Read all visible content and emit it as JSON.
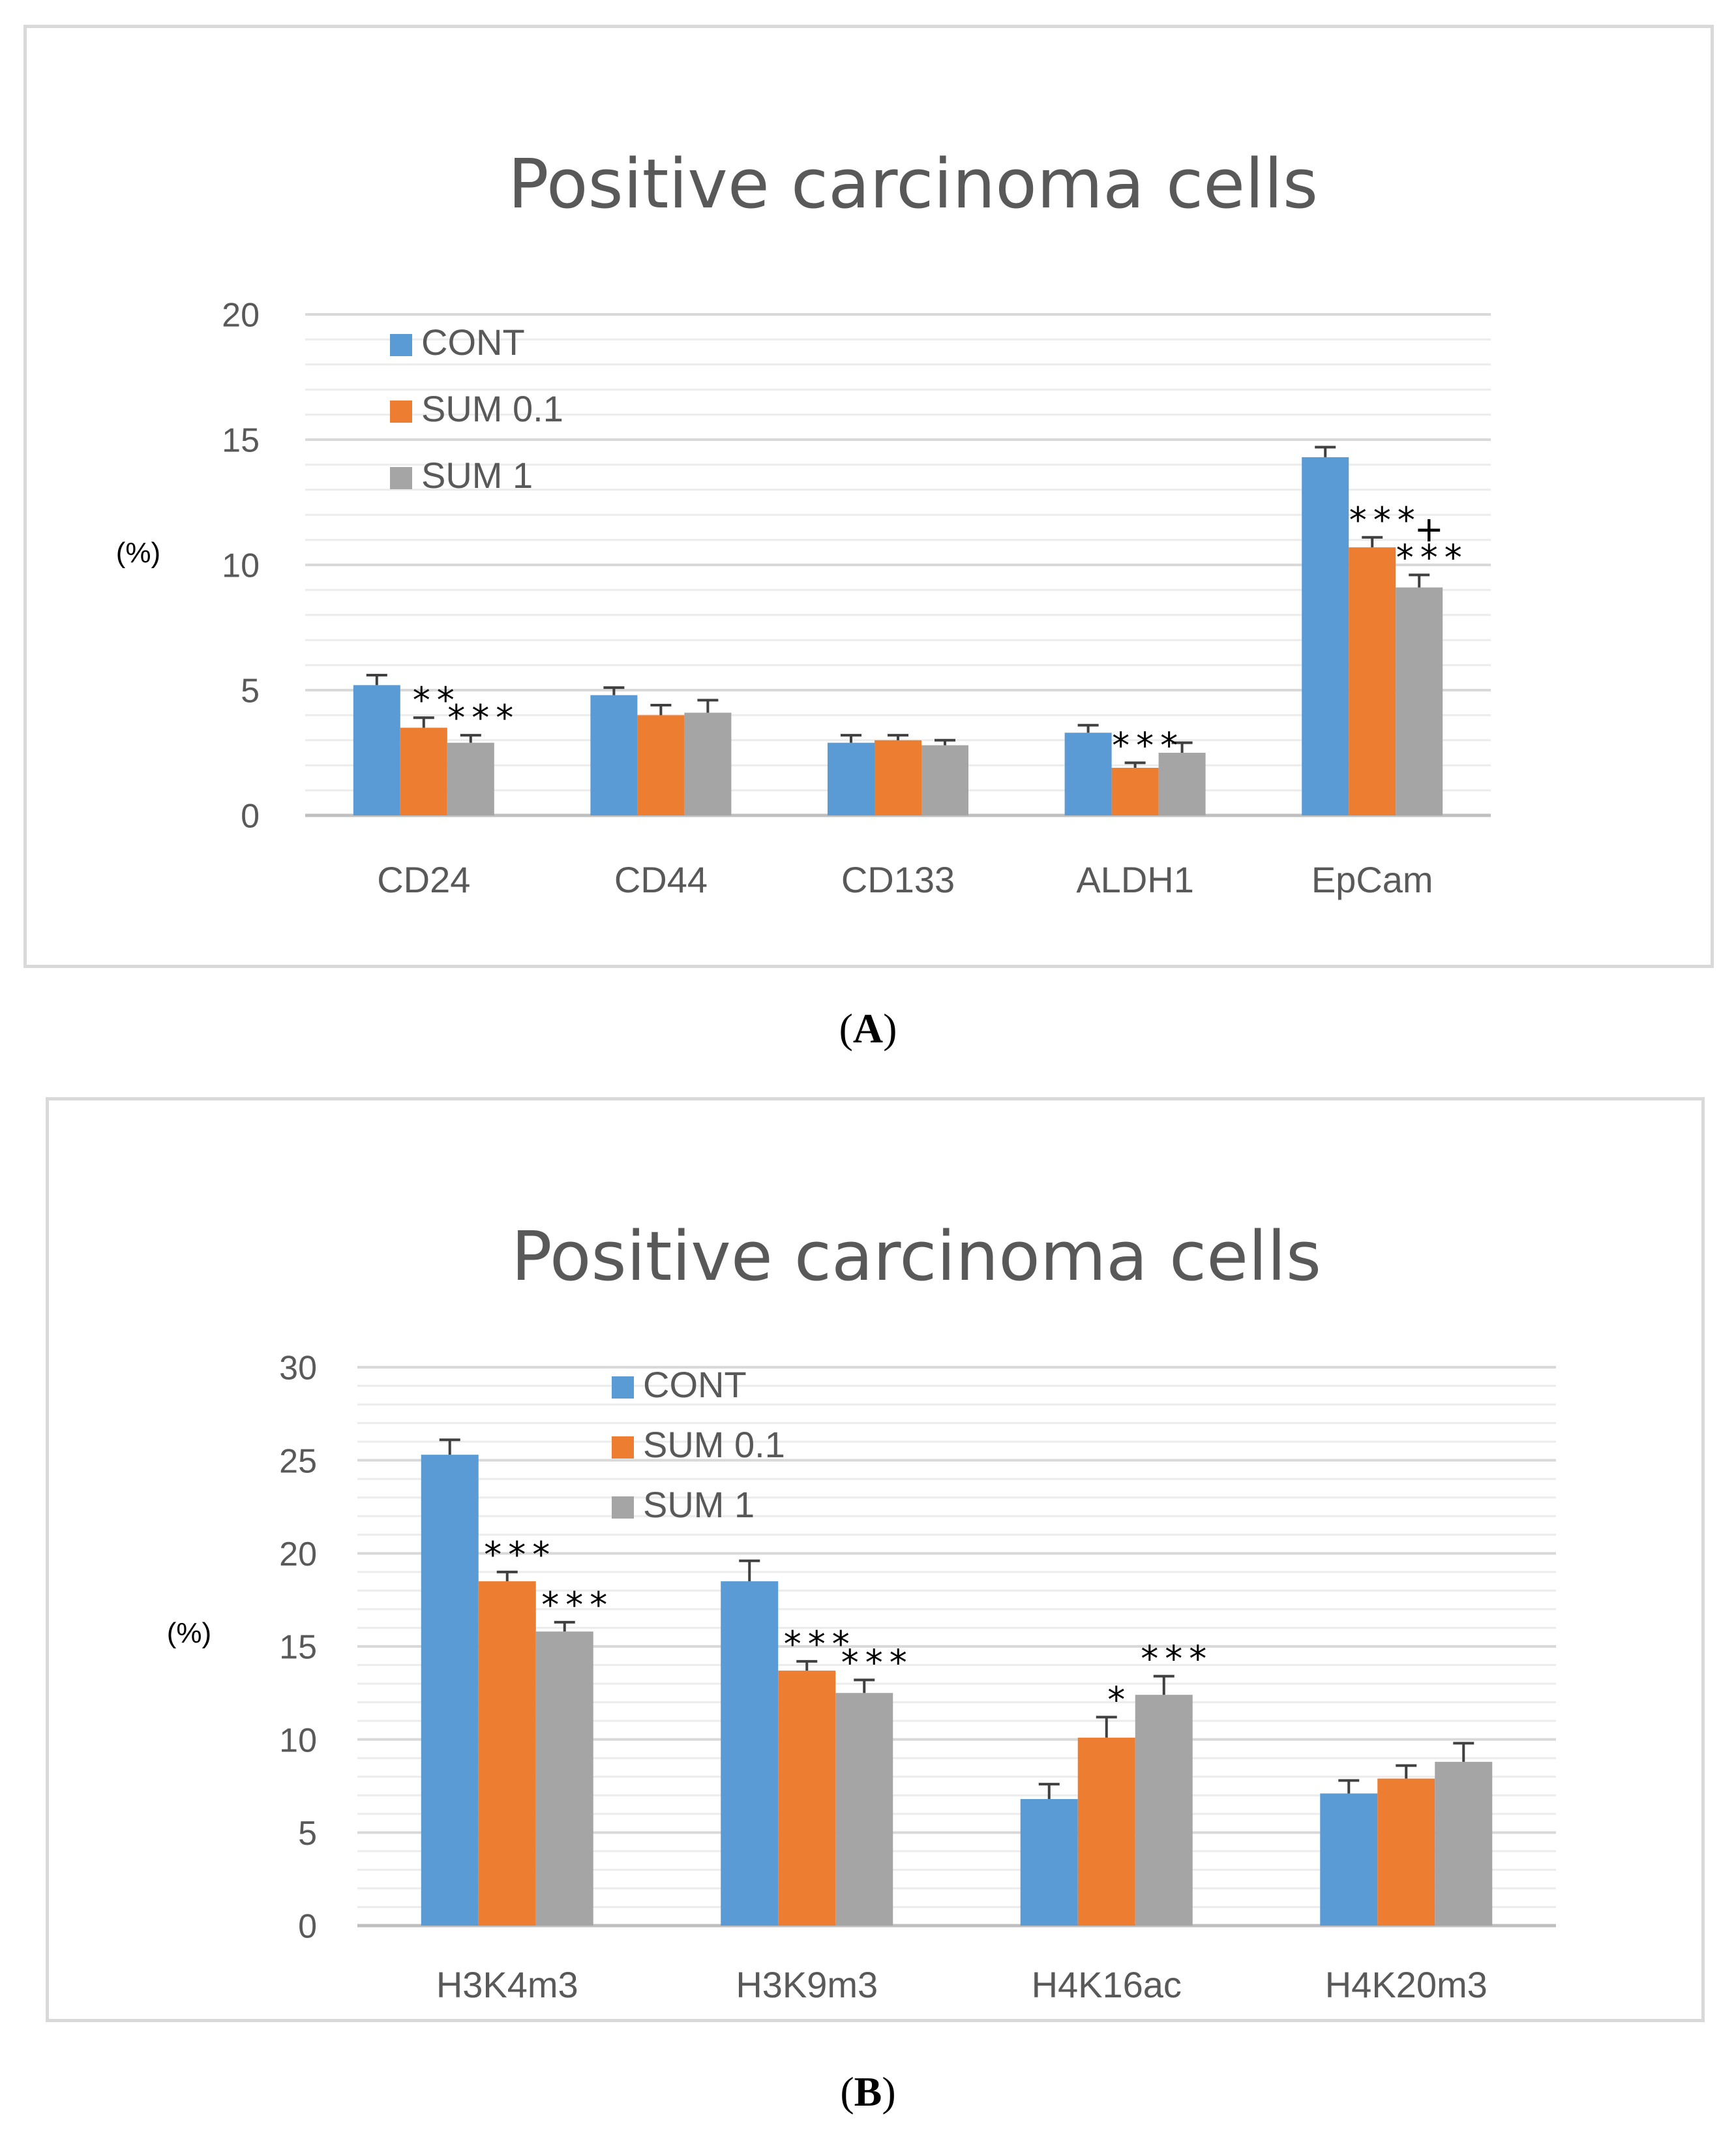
{
  "panel_labels": {
    "a": {
      "open": "(",
      "letter": "A",
      "close": ")"
    },
    "b": {
      "open": "(",
      "letter": "B",
      "close": ")"
    }
  },
  "colors": {
    "CONT": "#5b9bd5",
    "SUM 0.1": "#ed7d31",
    "SUM 1": "#a5a5a5",
    "grid": "#d9d9d9",
    "text": "#595959"
  },
  "chart_data": [
    {
      "id": "A",
      "type": "bar",
      "title": "Positive carcinoma cells",
      "ylabel": "(%)",
      "xlabel": "",
      "ylim": [
        0,
        20
      ],
      "yticks": [
        0,
        5,
        10,
        15,
        20
      ],
      "minor_grid_step": 1,
      "legend_position": "top-left",
      "categories": [
        "CD24",
        "CD44",
        "CD133",
        "ALDH1",
        "EpCam"
      ],
      "series": [
        {
          "name": "CONT",
          "values": [
            5.2,
            4.8,
            2.9,
            3.3,
            14.3
          ],
          "errors": [
            0.4,
            0.3,
            0.3,
            0.3,
            0.4
          ]
        },
        {
          "name": "SUM 0.1",
          "values": [
            3.5,
            4.0,
            3.0,
            1.9,
            10.7
          ],
          "errors": [
            0.4,
            0.4,
            0.2,
            0.2,
            0.4
          ]
        },
        {
          "name": "SUM 1",
          "values": [
            2.9,
            4.1,
            2.8,
            2.5,
            9.1
          ],
          "errors": [
            0.3,
            0.5,
            0.2,
            0.4,
            0.5
          ]
        }
      ],
      "annotations": [
        {
          "category": 0,
          "series": 1,
          "text": "**"
        },
        {
          "category": 0,
          "series": 2,
          "text": "***"
        },
        {
          "category": 3,
          "series": 1,
          "text": "***"
        },
        {
          "category": 4,
          "series": 1,
          "text": "***"
        },
        {
          "category": 4,
          "series": 2,
          "text": "+\n***"
        }
      ]
    },
    {
      "id": "B",
      "type": "bar",
      "title": "Positive carcinoma cells",
      "ylabel": "(%)",
      "xlabel": "",
      "ylim": [
        0,
        30
      ],
      "yticks": [
        0,
        5,
        10,
        15,
        20,
        25,
        30
      ],
      "minor_grid_step": 1,
      "legend_position": "top-center",
      "categories": [
        "H3K4m3",
        "H3K9m3",
        "H4K16ac",
        "H4K20m3"
      ],
      "series": [
        {
          "name": "CONT",
          "values": [
            25.3,
            18.5,
            6.8,
            7.1
          ],
          "errors": [
            0.8,
            1.1,
            0.8,
            0.7
          ]
        },
        {
          "name": "SUM 0.1",
          "values": [
            18.5,
            13.7,
            10.1,
            7.9
          ],
          "errors": [
            0.5,
            0.5,
            1.1,
            0.7
          ]
        },
        {
          "name": "SUM 1",
          "values": [
            15.8,
            12.5,
            12.4,
            8.8
          ],
          "errors": [
            0.5,
            0.7,
            1.0,
            1.0
          ]
        }
      ],
      "annotations": [
        {
          "category": 0,
          "series": 1,
          "text": "***"
        },
        {
          "category": 0,
          "series": 2,
          "text": "***"
        },
        {
          "category": 1,
          "series": 1,
          "text": "***"
        },
        {
          "category": 1,
          "series": 2,
          "text": "***"
        },
        {
          "category": 2,
          "series": 1,
          "text": "*"
        },
        {
          "category": 2,
          "series": 2,
          "text": "***"
        }
      ]
    }
  ]
}
